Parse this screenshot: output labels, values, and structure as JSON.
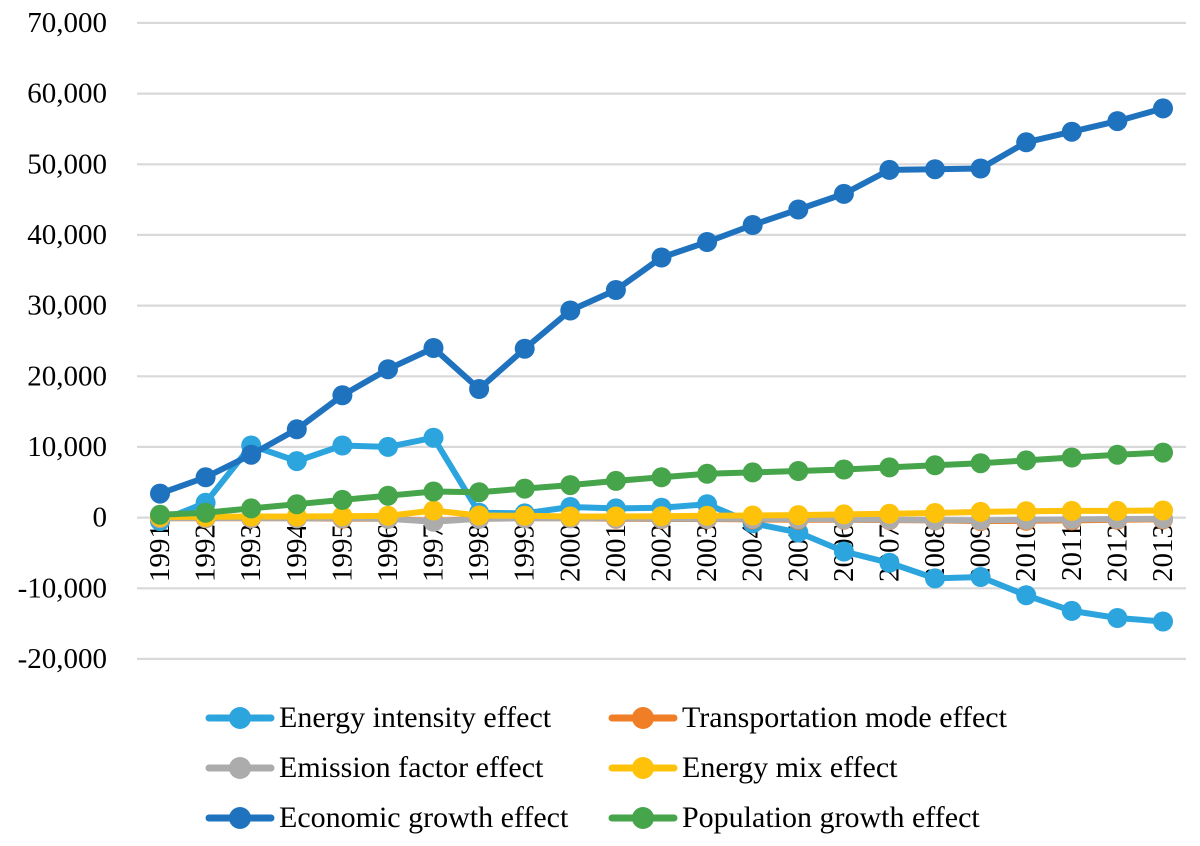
{
  "figure": {
    "background_color": "#ffffff",
    "axis_text_color": "#000000"
  },
  "chart_data": {
    "type": "line",
    "title": "",
    "xlabel": "",
    "ylabel": "",
    "categories": [
      "1991",
      "1992",
      "1993",
      "1994",
      "1995",
      "1996",
      "1997",
      "1998",
      "1999",
      "2000",
      "2001",
      "2002",
      "2003",
      "2004",
      "2005",
      "2006",
      "2007",
      "2008",
      "2009",
      "2010",
      "2011",
      "2012",
      "2013"
    ],
    "series": [
      {
        "name": "Energy intensity effect",
        "color": "#2CA5DE",
        "values": [
          -500,
          2100,
          10200,
          8000,
          10200,
          10000,
          11300,
          700,
          600,
          1500,
          1300,
          1400,
          1900,
          -800,
          -2100,
          -4800,
          -6400,
          -8600,
          -8400,
          -11000,
          -13200,
          -14200,
          -14700
        ]
      },
      {
        "name": "Transportation mode effect",
        "color": "#F07E27",
        "values": [
          -100,
          -100,
          -100,
          -100,
          -150,
          -150,
          -500,
          -150,
          -100,
          -100,
          -150,
          -200,
          -200,
          -250,
          -300,
          -300,
          -350,
          -400,
          -500,
          -450,
          -400,
          -300,
          -250
        ]
      },
      {
        "name": "Emission factor effect",
        "color": "#ACACAC",
        "values": [
          -50,
          -50,
          -50,
          -100,
          -100,
          -150,
          -600,
          -150,
          -100,
          -100,
          -100,
          -150,
          -150,
          -150,
          -200,
          -250,
          -300,
          -350,
          -400,
          -300,
          -250,
          -200,
          -150
        ]
      },
      {
        "name": "Energy mix effect",
        "color": "#FFC20A",
        "values": [
          100,
          100,
          150,
          150,
          200,
          250,
          1000,
          300,
          250,
          150,
          150,
          200,
          250,
          300,
          350,
          450,
          550,
          650,
          800,
          900,
          950,
          950,
          1000
        ]
      },
      {
        "name": "Economic growth effect",
        "color": "#1F72BE",
        "values": [
          3400,
          5700,
          8900,
          12500,
          17300,
          21000,
          24000,
          18200,
          23900,
          29300,
          32200,
          36800,
          39000,
          41400,
          43600,
          45800,
          49200,
          49300,
          49400,
          53100,
          54600,
          56100,
          57900
        ]
      },
      {
        "name": "Population growth effect",
        "color": "#46A44A",
        "values": [
          400,
          700,
          1300,
          1900,
          2500,
          3100,
          3700,
          3600,
          4100,
          4600,
          5200,
          5700,
          6200,
          6400,
          6600,
          6800,
          7100,
          7400,
          7700,
          8100,
          8500,
          8900,
          9200
        ]
      }
    ],
    "ylim": [
      -20000,
      70000
    ],
    "ytick_step": 10000,
    "y_tick_labels": [
      "70,000",
      "60,000",
      "50,000",
      "40,000",
      "30,000",
      "20,000",
      "10,000",
      "0",
      "-10,000",
      "-20,000"
    ],
    "grid": true,
    "gridline_color": "#D9D9D9",
    "legend_position": "bottom",
    "legend_columns": 2,
    "legend_order": [
      "Energy intensity effect",
      "Transportation mode effect",
      "Emission factor effect",
      "Energy mix effect",
      "Economic growth effect",
      "Population growth effect"
    ]
  }
}
